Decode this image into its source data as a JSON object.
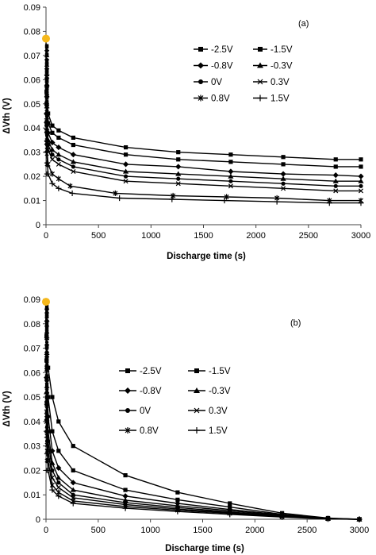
{
  "colors": {
    "line": "#000000",
    "highlight": "#f5b81c",
    "background": "#ffffff"
  },
  "chart_data": [
    {
      "type": "line",
      "panel_label": "(a)",
      "xlabel": "Discharge time (s)",
      "ylabel": "ΔVth (V)",
      "xlim": [
        0,
        3000
      ],
      "ylim": [
        0,
        0.09
      ],
      "xticks": [
        "0",
        "500",
        "1000",
        "1500",
        "2000",
        "2500",
        "3000"
      ],
      "yticks": [
        "0",
        "0.01",
        "0.02",
        "0.03",
        "0.04",
        "0.05",
        "0.06",
        "0.07",
        "0.08",
        "0.09"
      ],
      "grid": false,
      "legend_position": "top-right",
      "highlight_point": {
        "x": 0,
        "y": 0.077
      },
      "series": [
        {
          "name": "-2.5V",
          "marker": "square",
          "x": [
            0,
            5,
            20,
            60,
            120,
            260,
            760,
            1260,
            1760,
            2260,
            2760,
            3000
          ],
          "y": [
            0.077,
            0.055,
            0.046,
            0.041,
            0.039,
            0.036,
            0.032,
            0.03,
            0.029,
            0.028,
            0.027,
            0.027
          ]
        },
        {
          "name": "-1.5V",
          "marker": "square",
          "x": [
            0,
            5,
            20,
            60,
            120,
            260,
            760,
            1260,
            1760,
            2260,
            2760,
            3000
          ],
          "y": [
            0.074,
            0.05,
            0.042,
            0.038,
            0.036,
            0.033,
            0.029,
            0.027,
            0.026,
            0.025,
            0.024,
            0.024
          ]
        },
        {
          "name": "-0.8V",
          "marker": "diamond",
          "x": [
            0,
            5,
            20,
            60,
            120,
            260,
            760,
            1260,
            1760,
            2260,
            2760,
            3000
          ],
          "y": [
            0.072,
            0.046,
            0.038,
            0.034,
            0.032,
            0.029,
            0.025,
            0.024,
            0.022,
            0.021,
            0.0205,
            0.02
          ]
        },
        {
          "name": "-0.3V",
          "marker": "triangle",
          "x": [
            0,
            5,
            20,
            60,
            120,
            260,
            760,
            1260,
            1760,
            2260,
            2760,
            3000
          ],
          "y": [
            0.07,
            0.043,
            0.035,
            0.031,
            0.029,
            0.026,
            0.022,
            0.021,
            0.02,
            0.019,
            0.018,
            0.018
          ]
        },
        {
          "name": "0V",
          "marker": "circle",
          "x": [
            0,
            5,
            20,
            60,
            120,
            260,
            760,
            1260,
            1760,
            2260,
            2760,
            3000
          ],
          "y": [
            0.068,
            0.041,
            0.033,
            0.029,
            0.027,
            0.024,
            0.02,
            0.019,
            0.018,
            0.017,
            0.016,
            0.016
          ]
        },
        {
          "name": "0.3V",
          "marker": "x",
          "x": [
            0,
            5,
            20,
            60,
            120,
            260,
            760,
            1260,
            1760,
            2260,
            2760,
            3000
          ],
          "y": [
            0.066,
            0.039,
            0.031,
            0.027,
            0.025,
            0.022,
            0.018,
            0.017,
            0.016,
            0.015,
            0.014,
            0.014
          ]
        },
        {
          "name": "0.8V",
          "marker": "star",
          "x": [
            0,
            5,
            20,
            60,
            120,
            230,
            660,
            1210,
            1720,
            2200,
            2700,
            3000
          ],
          "y": [
            0.064,
            0.034,
            0.025,
            0.021,
            0.019,
            0.016,
            0.013,
            0.012,
            0.0115,
            0.011,
            0.01,
            0.01
          ]
        },
        {
          "name": "1.5V",
          "marker": "plus",
          "x": [
            0,
            5,
            20,
            60,
            120,
            250,
            700,
            1200,
            1700,
            2200,
            2700,
            3000
          ],
          "y": [
            0.062,
            0.03,
            0.021,
            0.017,
            0.015,
            0.013,
            0.011,
            0.0105,
            0.01,
            0.0095,
            0.009,
            0.009
          ]
        }
      ]
    },
    {
      "type": "line",
      "panel_label": "(b)",
      "xlabel": "Discharge time (s)",
      "ylabel": "ΔVth (V)",
      "xlim": [
        0,
        3000
      ],
      "ylim": [
        0,
        0.09
      ],
      "xticks": [
        "0",
        "500",
        "1000",
        "1500",
        "2000",
        "2500",
        "3000"
      ],
      "yticks": [
        "0",
        "0.01",
        "0.02",
        "0.03",
        "0.04",
        "0.05",
        "0.06",
        "0.07",
        "0.08",
        "0.09"
      ],
      "grid": false,
      "legend_position": "center-right",
      "highlight_point": {
        "x": 0,
        "y": 0.089
      },
      "series": [
        {
          "name": "-2.5V",
          "marker": "square",
          "x": [
            0,
            5,
            20,
            60,
            120,
            260,
            760,
            1260,
            1760,
            2260,
            2700,
            3000
          ],
          "y": [
            0.089,
            0.075,
            0.062,
            0.05,
            0.04,
            0.03,
            0.018,
            0.011,
            0.0065,
            0.0025,
            0.0005,
            0
          ]
        },
        {
          "name": "-1.5V",
          "marker": "square",
          "x": [
            0,
            5,
            20,
            60,
            120,
            260,
            760,
            1260,
            1760,
            2260,
            2700,
            3000
          ],
          "y": [
            0.087,
            0.065,
            0.05,
            0.036,
            0.028,
            0.02,
            0.012,
            0.008,
            0.005,
            0.002,
            0.0004,
            0
          ]
        },
        {
          "name": "-0.8V",
          "marker": "diamond",
          "x": [
            0,
            5,
            20,
            60,
            120,
            260,
            760,
            1260,
            1760,
            2260,
            2700,
            3000
          ],
          "y": [
            0.086,
            0.058,
            0.042,
            0.028,
            0.021,
            0.015,
            0.0095,
            0.0065,
            0.004,
            0.0018,
            0.0003,
            0
          ]
        },
        {
          "name": "-0.3V",
          "marker": "triangle",
          "x": [
            0,
            5,
            20,
            60,
            120,
            260,
            760,
            1260,
            1760,
            2260,
            2700,
            3000
          ],
          "y": [
            0.085,
            0.052,
            0.036,
            0.023,
            0.017,
            0.012,
            0.0078,
            0.0055,
            0.0035,
            0.0015,
            0.0003,
            0
          ]
        },
        {
          "name": "0V",
          "marker": "circle",
          "x": [
            0,
            5,
            20,
            60,
            120,
            260,
            760,
            1260,
            1760,
            2260,
            2700,
            3000
          ],
          "y": [
            0.084,
            0.048,
            0.032,
            0.02,
            0.015,
            0.01,
            0.0068,
            0.0048,
            0.003,
            0.0013,
            0.0002,
            0
          ]
        },
        {
          "name": "0.3V",
          "marker": "x",
          "x": [
            0,
            5,
            20,
            60,
            120,
            260,
            760,
            1260,
            1760,
            2260,
            2700,
            3000
          ],
          "y": [
            0.083,
            0.044,
            0.028,
            0.017,
            0.013,
            0.0088,
            0.006,
            0.0042,
            0.0027,
            0.0012,
            0.0002,
            0
          ]
        },
        {
          "name": "0.8V",
          "marker": "star",
          "x": [
            0,
            5,
            20,
            60,
            120,
            260,
            760,
            1260,
            1760,
            2260,
            2700,
            3000
          ],
          "y": [
            0.082,
            0.04,
            0.024,
            0.014,
            0.011,
            0.0075,
            0.0052,
            0.0037,
            0.0024,
            0.001,
            0.0002,
            0
          ]
        },
        {
          "name": "1.5V",
          "marker": "plus",
          "x": [
            0,
            5,
            20,
            60,
            120,
            260,
            760,
            1260,
            1760,
            2260,
            2700,
            3000
          ],
          "y": [
            0.081,
            0.036,
            0.02,
            0.012,
            0.0095,
            0.0065,
            0.0045,
            0.0032,
            0.002,
            0.0009,
            0.0001,
            0
          ]
        }
      ]
    }
  ]
}
